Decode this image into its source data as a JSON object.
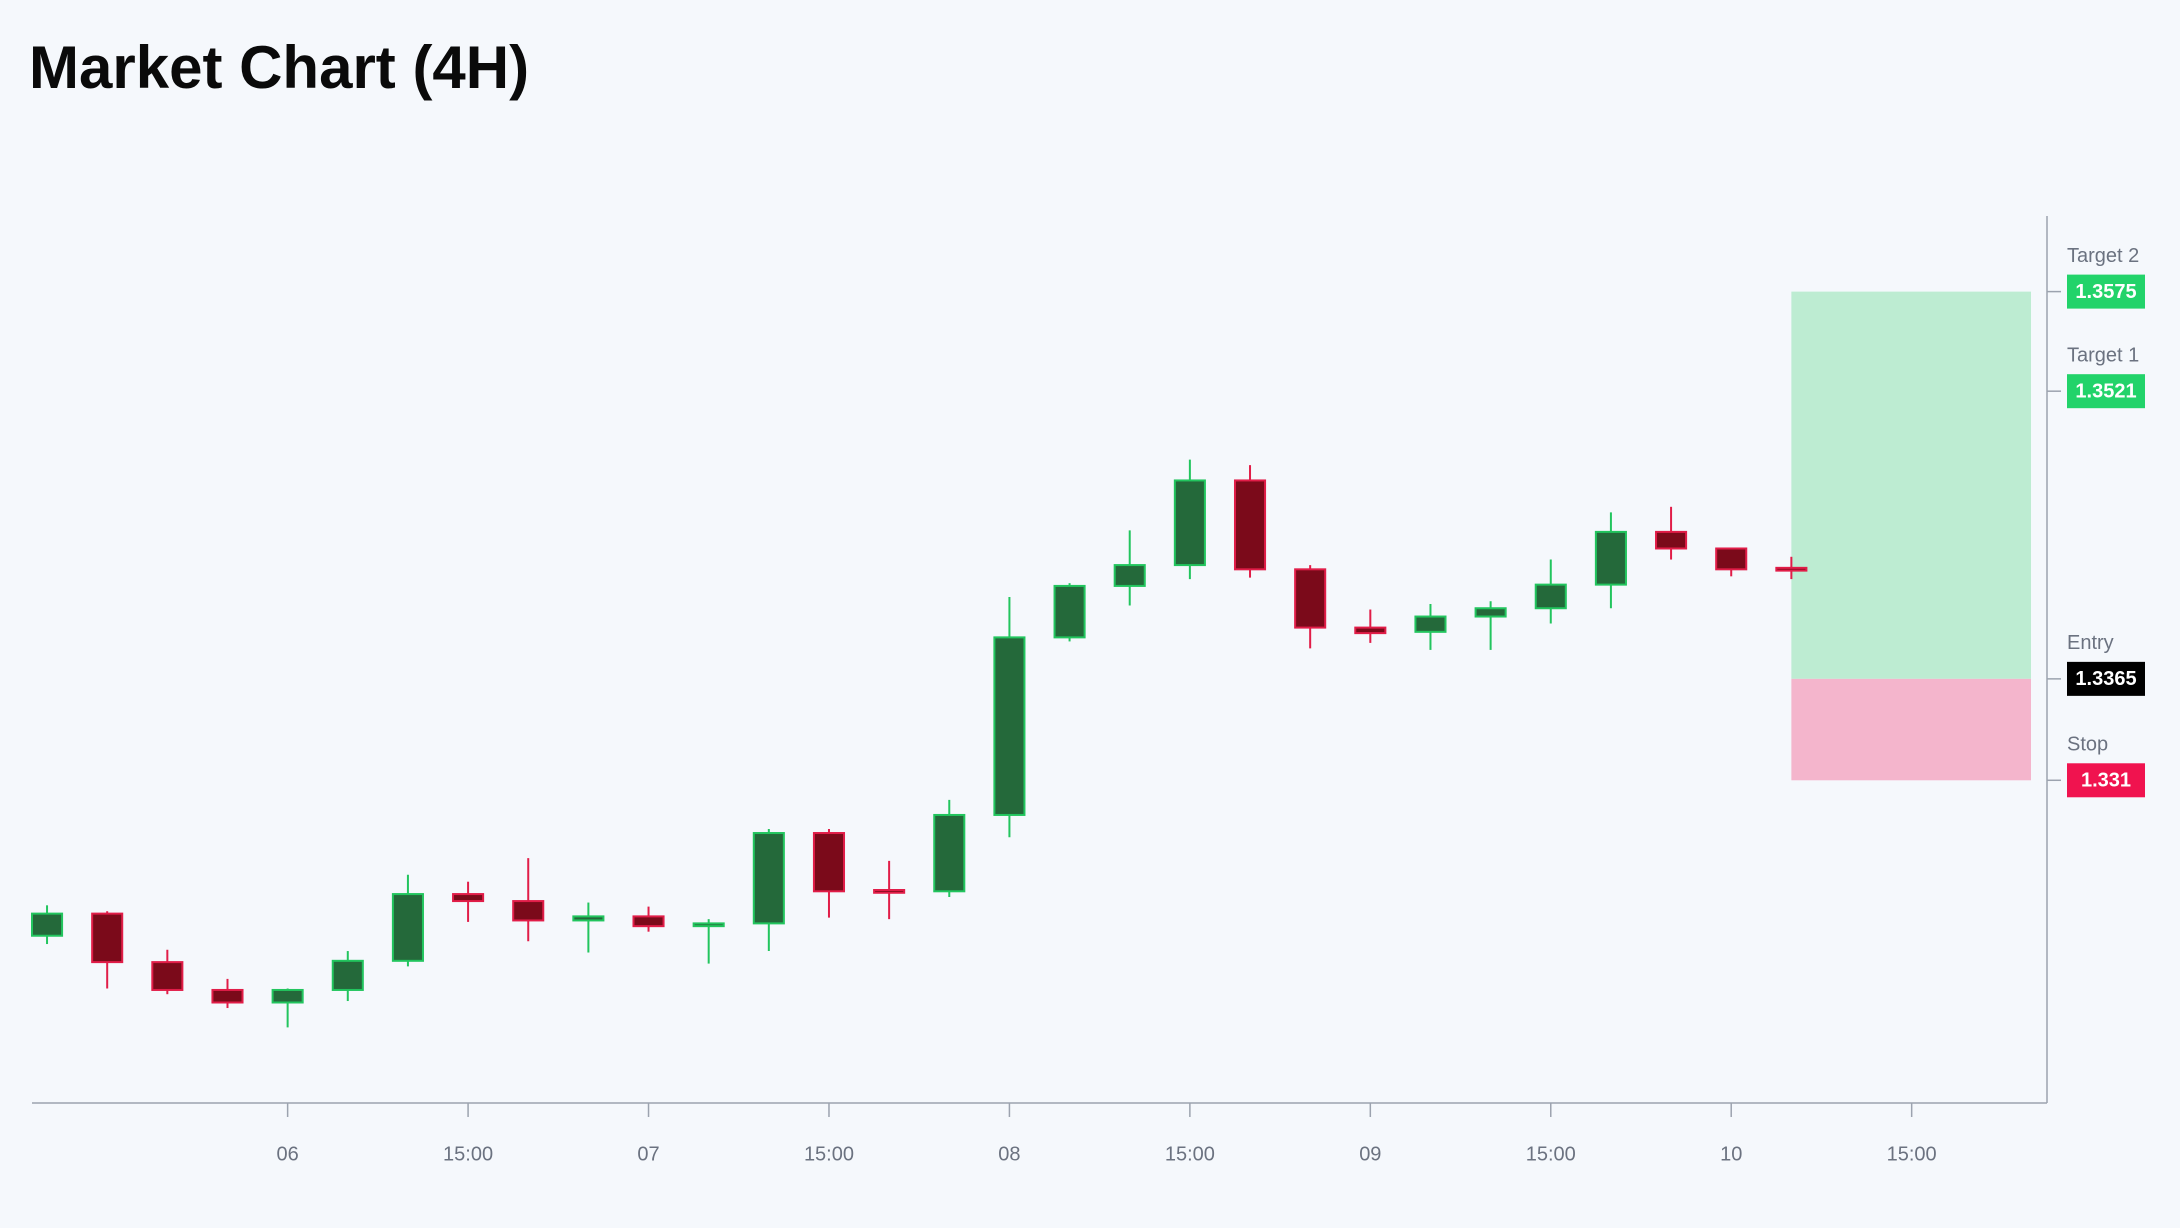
{
  "chart_data": {
    "type": "candlestick",
    "title": "Market Chart (4H)",
    "x": [
      0,
      1,
      2,
      3,
      4,
      5,
      6,
      7,
      8,
      9,
      10,
      11,
      12,
      13,
      14,
      15,
      16,
      17,
      18,
      19,
      20,
      21,
      22,
      23,
      24,
      25,
      26,
      27,
      28,
      29
    ],
    "open": [
      1.32257,
      1.32377,
      1.32114,
      1.31963,
      1.31895,
      1.31963,
      1.32121,
      1.32483,
      1.32445,
      1.3234,
      1.32362,
      1.32309,
      1.32324,
      1.32814,
      1.32505,
      1.32498,
      1.32912,
      1.33875,
      1.34154,
      1.34267,
      1.34726,
      1.34244,
      1.33928,
      1.33905,
      1.33988,
      1.34033,
      1.34161,
      1.34447,
      1.34357,
      1.34252
    ],
    "high": [
      1.32422,
      1.3239,
      1.32181,
      1.32023,
      1.31971,
      1.32174,
      1.32588,
      1.3255,
      1.32678,
      1.32437,
      1.32415,
      1.32347,
      1.32836,
      1.32836,
      1.32663,
      1.32994,
      1.34094,
      1.34169,
      1.34455,
      1.34839,
      1.34809,
      1.34267,
      1.34026,
      1.34056,
      1.34071,
      1.34297,
      1.34553,
      1.34583,
      1.34357,
      1.34312
    ],
    "low": [
      1.32212,
      1.31971,
      1.3194,
      1.31865,
      1.3176,
      1.31903,
      1.32091,
      1.32332,
      1.32227,
      1.32166,
      1.32279,
      1.32106,
      1.32174,
      1.32355,
      1.32347,
      1.32467,
      1.32791,
      1.33853,
      1.34048,
      1.34191,
      1.34199,
      1.33815,
      1.33845,
      1.33807,
      1.33807,
      1.3395,
      1.34033,
      1.34297,
      1.34206,
      1.34191
    ],
    "close": [
      1.32377,
      1.32114,
      1.31963,
      1.31895,
      1.31963,
      1.32121,
      1.32483,
      1.32445,
      1.3234,
      1.32362,
      1.32309,
      1.32324,
      1.32814,
      1.32498,
      1.3249,
      1.32912,
      1.33875,
      1.34154,
      1.34267,
      1.34726,
      1.34244,
      1.33928,
      1.33898,
      1.33988,
      1.34033,
      1.34161,
      1.34447,
      1.34357,
      1.34244,
      1.34237
    ],
    "up_color": "#22c55e",
    "down_color": "#e11d48",
    "up_fill": "#24693a",
    "down_fill": "#7b0a1a",
    "xlim": [
      -0.25,
      33.25
    ],
    "xticks": [
      {
        "value": 4,
        "label": "06"
      },
      {
        "value": 7,
        "label": "15:00"
      },
      {
        "value": 10,
        "label": "07"
      },
      {
        "value": 13,
        "label": "15:00"
      },
      {
        "value": 16,
        "label": "08"
      },
      {
        "value": 19,
        "label": "15:00"
      },
      {
        "value": 22,
        "label": "09"
      },
      {
        "value": 25,
        "label": "15:00"
      },
      {
        "value": 28,
        "label": "10"
      },
      {
        "value": 31,
        "label": "15:00"
      }
    ],
    "ylim": [
      1.3135,
      1.3616
    ],
    "levels": [
      {
        "name": "Target 2",
        "value": 1.3575,
        "color": "#22d36a"
      },
      {
        "name": "Target 1",
        "value": 1.3521,
        "color": "#22d36a"
      },
      {
        "name": "Entry",
        "value": 1.3365,
        "color": "#000000"
      },
      {
        "name": "Stop",
        "value": 1.331,
        "color": "#f0134f"
      }
    ],
    "profit_color": "#bdecd2",
    "loss_color": "#f4b5cc"
  }
}
